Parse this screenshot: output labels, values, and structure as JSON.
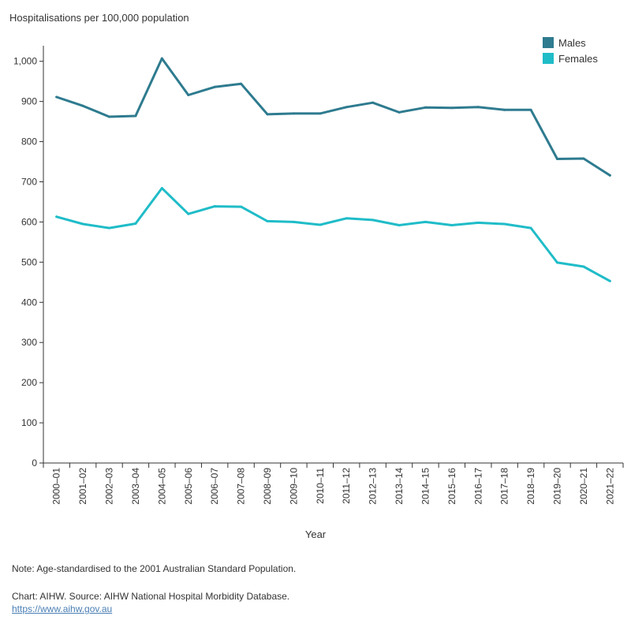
{
  "chart_data": {
    "type": "line",
    "title": "",
    "ylabel": "Hospitalisations per 100,000 population",
    "xlabel": "Year",
    "ylim": [
      0,
      1050
    ],
    "yticks": [
      0,
      100,
      200,
      300,
      400,
      500,
      600,
      700,
      800,
      900,
      1000
    ],
    "ytick_labels": [
      "0",
      "100",
      "200",
      "300",
      "400",
      "500",
      "600",
      "700",
      "800",
      "900",
      "1,000"
    ],
    "categories": [
      "2000–01",
      "2001–02",
      "2002–03",
      "2003–04",
      "2004–05",
      "2005–06",
      "2006–07",
      "2007–08",
      "2008–09",
      "2009–10",
      "2010–11",
      "2011–12",
      "2012–13",
      "2013–14",
      "2014–15",
      "2015–16",
      "2016–17",
      "2017–18",
      "2018–19",
      "2019–20",
      "2020–21",
      "2021–22"
    ],
    "series": [
      {
        "name": "Males",
        "color": "#2e7b8f",
        "values": [
          911,
          889,
          862,
          864,
          1007,
          916,
          936,
          944,
          868,
          870,
          870,
          886,
          897,
          873,
          885,
          884,
          886,
          879,
          879,
          757,
          758,
          716
        ]
      },
      {
        "name": "Females",
        "color": "#1fbcc8",
        "values": [
          613,
          595,
          585,
          596,
          684,
          620,
          639,
          638,
          602,
          600,
          593,
          609,
          605,
          592,
          600,
          592,
          598,
          595,
          585,
          499,
          489,
          453
        ]
      }
    ],
    "legend_position": "top-right",
    "grid": false
  },
  "footer": {
    "note": "Note: Age-standardised to the 2001 Australian Standard Population.",
    "source": "Chart: AIHW. Source: AIHW National Hospital Morbidity Database.",
    "link": "https://www.aihw.gov.au"
  }
}
